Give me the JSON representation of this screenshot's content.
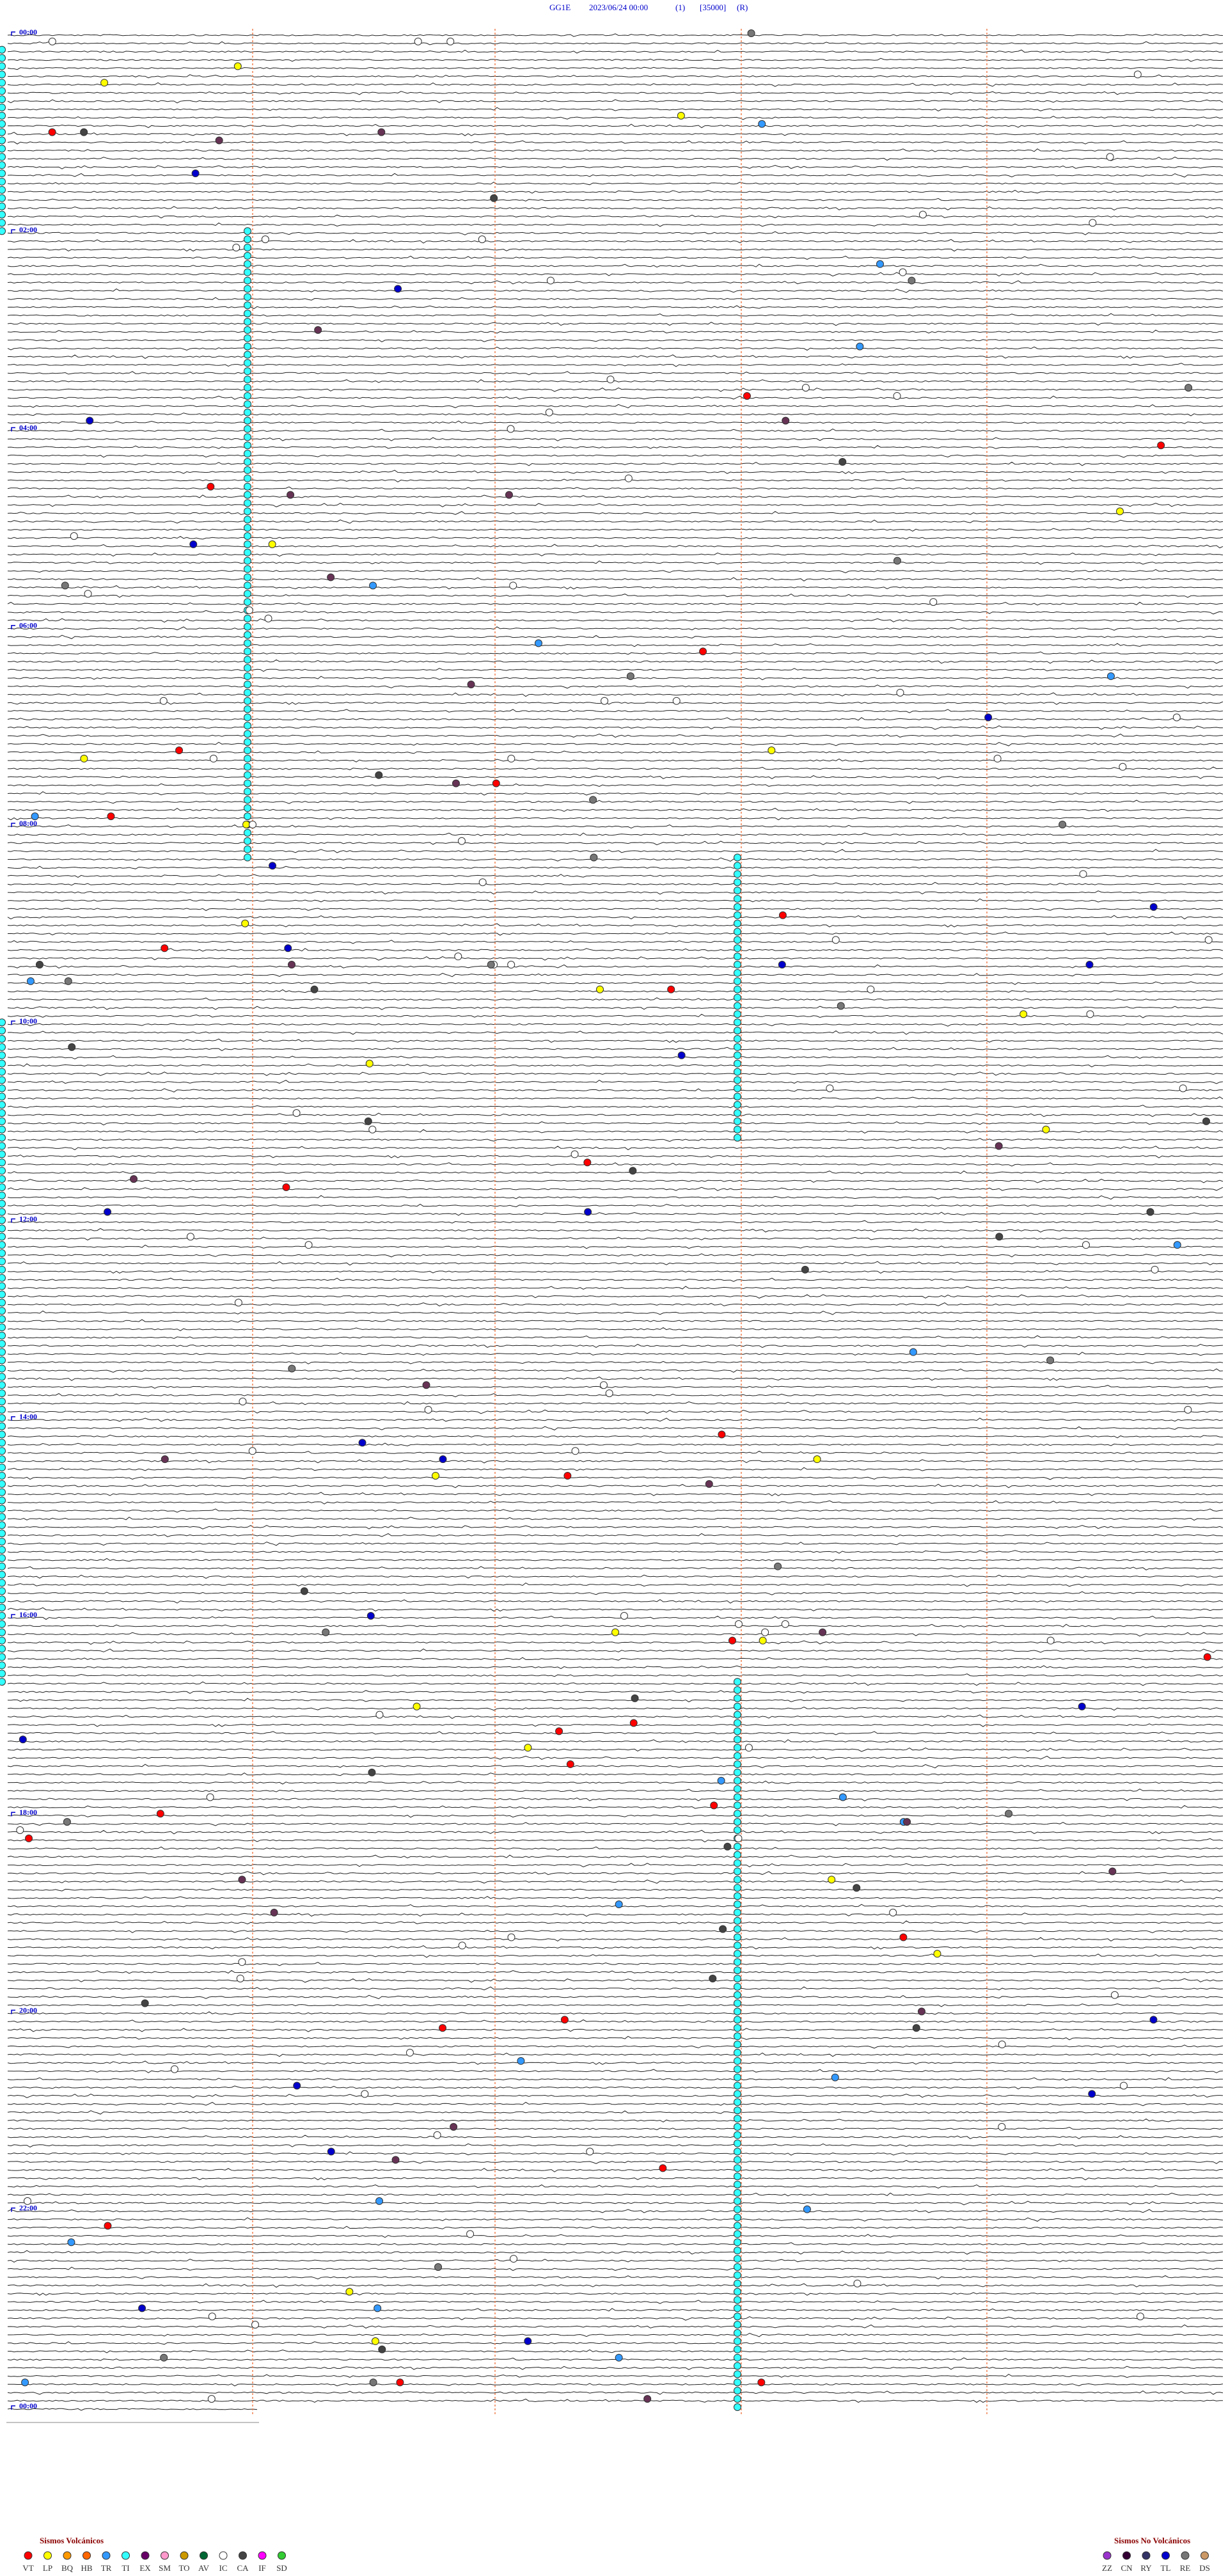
{
  "header": {
    "station": "GG1E",
    "datetime": "2023/06/24 00:00",
    "channel": "(1)",
    "scale": "[35000]",
    "mode": "(R)"
  },
  "time_labels": [
    "00:00",
    "02:00",
    "04:00",
    "06:00",
    "08:00",
    "10:00",
    "12:00",
    "14:00",
    "16:00",
    "18:00",
    "20:00",
    "22:00",
    "00:00"
  ],
  "legend": {
    "volcanic": {
      "title": "Sismos Volcánicos",
      "items": [
        {
          "code": "VT",
          "color": "#ff0000"
        },
        {
          "code": "LP",
          "color": "#ffff00"
        },
        {
          "code": "BQ",
          "color": "#ff9900"
        },
        {
          "code": "HB",
          "color": "#ff6600"
        },
        {
          "code": "TR",
          "color": "#3399ff"
        },
        {
          "code": "TI",
          "color": "#33ffff"
        },
        {
          "code": "EX",
          "color": "#660066"
        },
        {
          "code": "SM",
          "color": "#ff99cc"
        },
        {
          "code": "TO",
          "color": "#cc9900"
        },
        {
          "code": "AV",
          "color": "#006633"
        },
        {
          "code": "IC",
          "color": "#ffffff"
        },
        {
          "code": "CA",
          "color": "#444444"
        },
        {
          "code": "IF",
          "color": "#ff00ff"
        },
        {
          "code": "SD",
          "color": "#33cc33"
        }
      ]
    },
    "non_volcanic": {
      "title": "Sismos No Volcánicos",
      "items": [
        {
          "code": "ZZ",
          "color": "#9933cc"
        },
        {
          "code": "CN",
          "color": "#330033"
        },
        {
          "code": "RY",
          "color": "#333366"
        },
        {
          "code": "TL",
          "color": "#0000cc"
        },
        {
          "code": "RE",
          "color": "#777777"
        },
        {
          "code": "DS",
          "color": "#cc9966"
        }
      ]
    }
  }
}
